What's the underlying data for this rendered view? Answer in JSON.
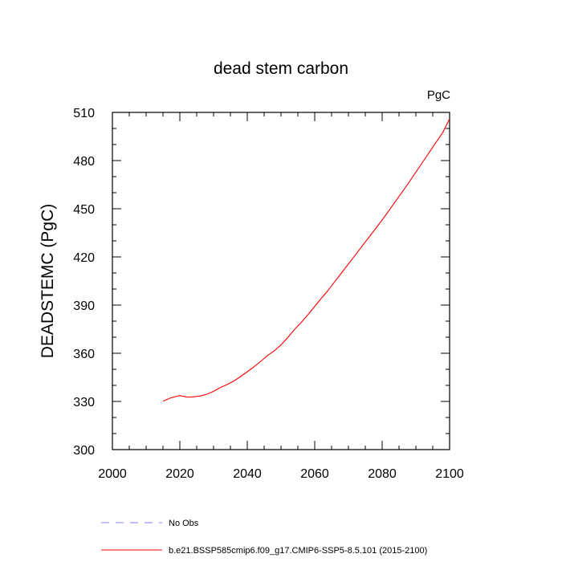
{
  "chart_data": {
    "type": "line",
    "title": "dead stem carbon",
    "units_label": "PgC",
    "ylabel": "DEADSTEMC  (PgC)",
    "xlabel": "",
    "xlim": [
      2000,
      2100
    ],
    "ylim": [
      300,
      510
    ],
    "x_ticks": [
      2000,
      2020,
      2040,
      2060,
      2080,
      2100
    ],
    "y_ticks": [
      300,
      330,
      360,
      390,
      420,
      450,
      480,
      510
    ],
    "x_tick_labels": [
      "2000",
      "2020",
      "2040",
      "2060",
      "2080",
      "2100"
    ],
    "y_tick_labels": [
      "300",
      "330",
      "360",
      "390",
      "420",
      "450",
      "480",
      "510"
    ],
    "grid": false,
    "legend_position": "bottom",
    "series": [
      {
        "name": "No Obs",
        "color": "#8080ff",
        "style": "dashed",
        "x": [],
        "y": []
      },
      {
        "name": "b.e21.BSSP585cmip6.f09_g17.CMIP6-SSP5-8.5.101 (2015-2100)",
        "color": "#ff0000",
        "style": "solid",
        "x": [
          2015,
          2016,
          2017,
          2018,
          2019,
          2020,
          2021,
          2022,
          2023,
          2024,
          2025,
          2026,
          2027,
          2028,
          2029,
          2030,
          2032,
          2034,
          2036,
          2038,
          2040,
          2042,
          2044,
          2046,
          2048,
          2050,
          2052,
          2054,
          2056,
          2058,
          2060,
          2062,
          2064,
          2066,
          2068,
          2070,
          2072,
          2074,
          2076,
          2078,
          2080,
          2082,
          2084,
          2086,
          2088,
          2090,
          2092,
          2094,
          2096,
          2098,
          2100
        ],
        "y": [
          330.2,
          331.0,
          332.0,
          332.6,
          333.2,
          333.6,
          333.2,
          332.8,
          332.7,
          332.9,
          333.1,
          333.4,
          333.9,
          334.5,
          335.3,
          336.3,
          338.6,
          340.5,
          342.7,
          345.5,
          348.5,
          351.6,
          355.0,
          358.6,
          361.5,
          365.2,
          369.8,
          374.8,
          379.2,
          384.0,
          389.2,
          394.3,
          399.3,
          404.8,
          410.2,
          415.6,
          421.1,
          426.6,
          432.0,
          437.5,
          443.0,
          448.8,
          454.8,
          460.6,
          466.6,
          472.8,
          479.0,
          485.2,
          491.4,
          497.6,
          506.0
        ]
      }
    ]
  }
}
